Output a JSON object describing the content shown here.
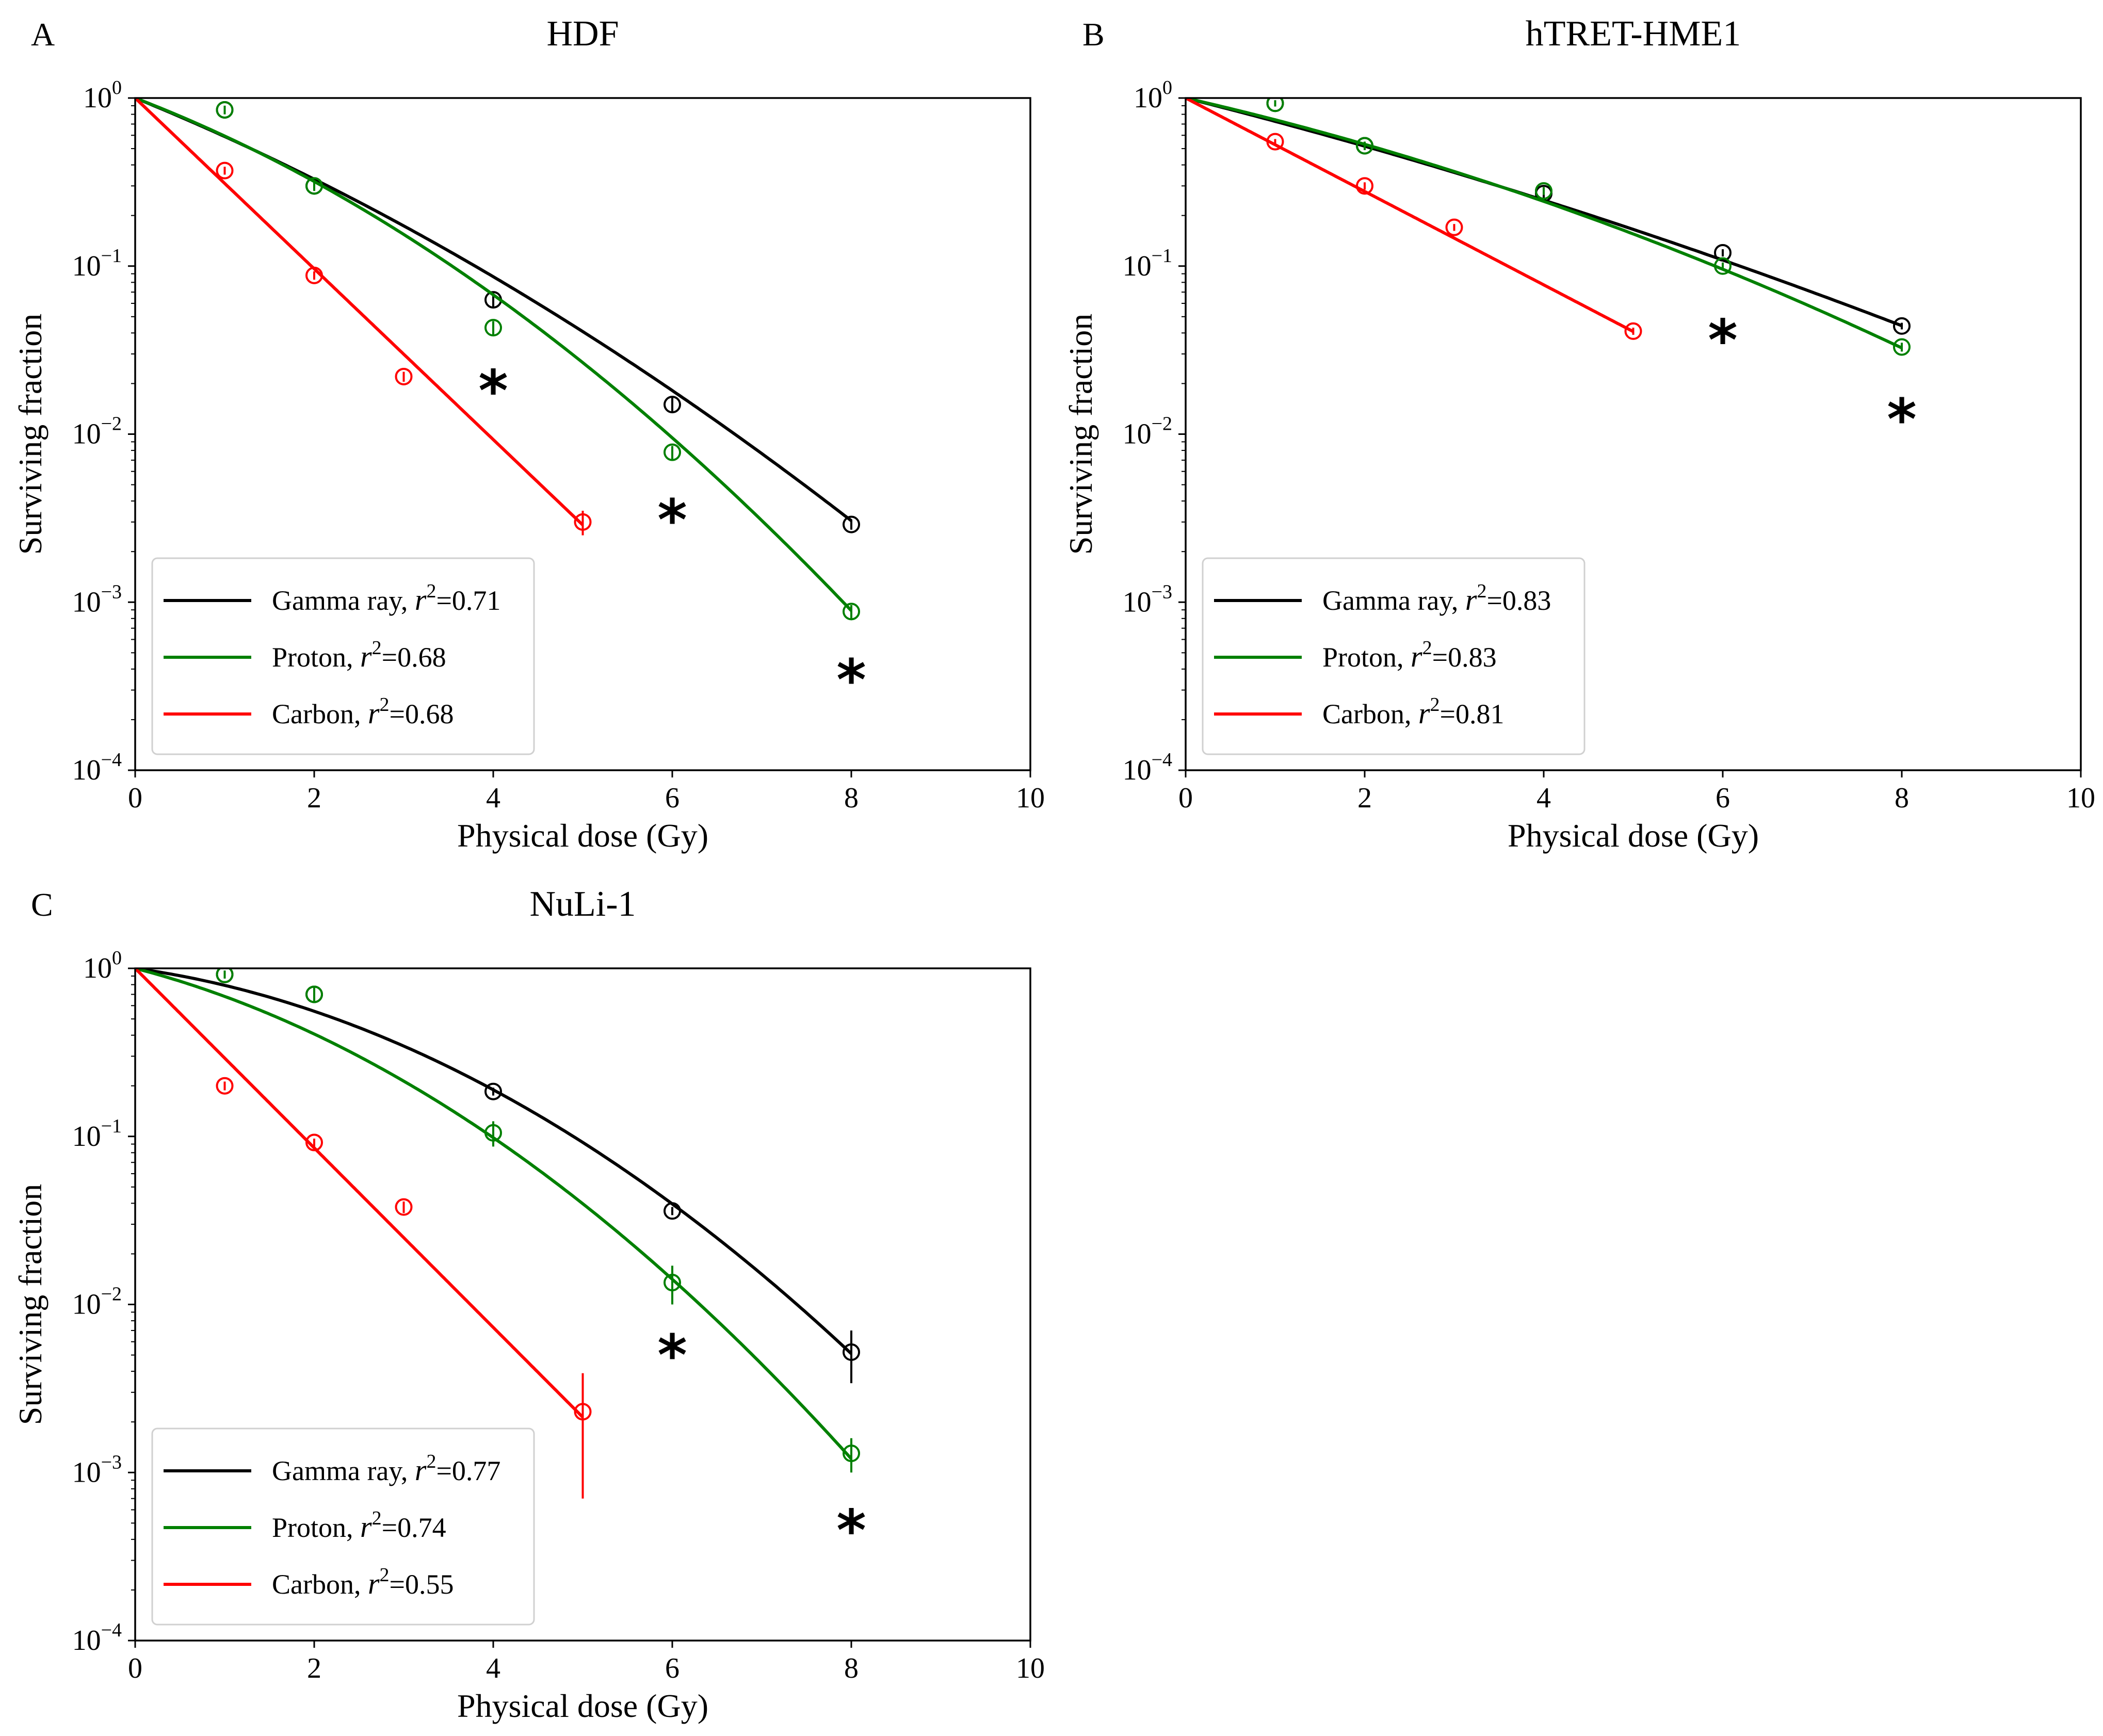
{
  "chart_data": [
    {
      "type": "line",
      "panel": "A",
      "title": "HDF",
      "xlabel": "Physical dose (Gy)",
      "ylabel": "Surviving fraction",
      "yscale": "log",
      "xlim": [
        0,
        10
      ],
      "ylim": [
        0.0001,
        1
      ],
      "xticks": [
        "0",
        "2",
        "4",
        "6",
        "8",
        "10"
      ],
      "yticks": [
        {
          "base": "10",
          "exp": "0"
        },
        {
          "base": "10",
          "exp": "−1"
        },
        {
          "base": "10",
          "exp": "−2"
        },
        {
          "base": "10",
          "exp": "−3"
        },
        {
          "base": "10",
          "exp": "−4"
        }
      ],
      "legend_position": "lower-left",
      "series": [
        {
          "name": "Gamma ray",
          "r2_label": "r",
          "r2_exp": "2",
          "r2_value": "=0.71",
          "color": "#000000",
          "fit": {
            "alpha": 0.5,
            "beta": 0.028,
            "xmax": 8
          },
          "points": [
            {
              "x": 1,
              "y": 0.85,
              "err": 0.05
            },
            {
              "x": 2,
              "y": 0.3,
              "err": 0.02
            },
            {
              "x": 4,
              "y": 0.063,
              "err": 0.006
            },
            {
              "x": 6,
              "y": 0.015,
              "err": 0.0015
            },
            {
              "x": 8,
              "y": 0.0029,
              "err": 0.0002
            }
          ]
        },
        {
          "name": "Proton",
          "r2_label": "r",
          "r2_exp": "2",
          "r2_value": "=0.68",
          "color": "#008000",
          "fit": {
            "alpha": 0.47,
            "beta": 0.051,
            "xmax": 8
          },
          "points": [
            {
              "x": 1,
              "y": 0.85,
              "err": 0.05
            },
            {
              "x": 2,
              "y": 0.3,
              "err": 0.02
            },
            {
              "x": 4,
              "y": 0.043,
              "err": 0.004
            },
            {
              "x": 6,
              "y": 0.0078,
              "err": 0.0007
            },
            {
              "x": 8,
              "y": 0.00088,
              "err": 8e-05
            }
          ]
        },
        {
          "name": "Carbon",
          "r2_label": "r",
          "r2_exp": "2",
          "r2_value": "=0.68",
          "color": "#ff0000",
          "fit": {
            "alpha": 1.17,
            "beta": 0.0,
            "xmax": 5
          },
          "points": [
            {
              "x": 1,
              "y": 0.37,
              "err": 0.02
            },
            {
              "x": 2,
              "y": 0.088,
              "err": 0.005
            },
            {
              "x": 3,
              "y": 0.022,
              "err": 0.0015
            },
            {
              "x": 5,
              "y": 0.003,
              "err": 0.0005
            }
          ]
        }
      ],
      "annotations": [
        {
          "text": "*",
          "x": 4,
          "y": 0.02
        },
        {
          "text": "*",
          "x": 6,
          "y": 0.0034
        },
        {
          "text": "*",
          "x": 8,
          "y": 0.00038
        }
      ]
    },
    {
      "type": "line",
      "panel": "B",
      "title": "hTRET-HME1",
      "xlabel": "Physical dose (Gy)",
      "ylabel": "Surviving fraction",
      "yscale": "log",
      "xlim": [
        0,
        10
      ],
      "ylim": [
        0.0001,
        1
      ],
      "xticks": [
        "0",
        "2",
        "4",
        "6",
        "8",
        "10"
      ],
      "yticks": [
        {
          "base": "10",
          "exp": "0"
        },
        {
          "base": "10",
          "exp": "−1"
        },
        {
          "base": "10",
          "exp": "−2"
        },
        {
          "base": "10",
          "exp": "−3"
        },
        {
          "base": "10",
          "exp": "−4"
        }
      ],
      "legend_position": "lower-left",
      "series": [
        {
          "name": "Gamma ray",
          "r2_label": "r",
          "r2_exp": "2",
          "r2_value": "=0.83",
          "color": "#000000",
          "fit": {
            "alpha": 0.31,
            "beta": 0.01,
            "xmax": 8
          },
          "points": [
            {
              "x": 1,
              "y": 0.93,
              "err": 0.04
            },
            {
              "x": 2,
              "y": 0.52,
              "err": 0.03
            },
            {
              "x": 4,
              "y": 0.27,
              "err": 0.015
            },
            {
              "x": 6,
              "y": 0.12,
              "err": 0.006
            },
            {
              "x": 8,
              "y": 0.044,
              "err": 0.002
            }
          ]
        },
        {
          "name": "Proton",
          "r2_label": "r",
          "r2_exp": "2",
          "r2_value": "=0.83",
          "color": "#008000",
          "fit": {
            "alpha": 0.28,
            "beta": 0.0185,
            "xmax": 8
          },
          "points": [
            {
              "x": 1,
              "y": 0.93,
              "err": 0.04
            },
            {
              "x": 2,
              "y": 0.52,
              "err": 0.03
            },
            {
              "x": 4,
              "y": 0.28,
              "err": 0.015
            },
            {
              "x": 6,
              "y": 0.1,
              "err": 0.005
            },
            {
              "x": 8,
              "y": 0.033,
              "err": 0.002
            }
          ]
        },
        {
          "name": "Carbon",
          "r2_label": "r",
          "r2_exp": "2",
          "r2_value": "=0.81",
          "color": "#ff0000",
          "fit": {
            "alpha": 0.64,
            "beta": 0.0,
            "xmax": 5
          },
          "points": [
            {
              "x": 1,
              "y": 0.55,
              "err": 0.02
            },
            {
              "x": 2,
              "y": 0.3,
              "err": 0.015
            },
            {
              "x": 3,
              "y": 0.17,
              "err": 0.008
            },
            {
              "x": 5,
              "y": 0.041,
              "err": 0.002
            }
          ]
        }
      ],
      "annotations": [
        {
          "text": "*",
          "x": 6,
          "y": 0.04
        },
        {
          "text": "*",
          "x": 8,
          "y": 0.0135
        }
      ]
    },
    {
      "type": "line",
      "panel": "C",
      "title": "NuLi-1",
      "xlabel": "Physical dose (Gy)",
      "ylabel": "Surviving fraction",
      "yscale": "log",
      "xlim": [
        0,
        10
      ],
      "ylim": [
        0.0001,
        1
      ],
      "xticks": [
        "0",
        "2",
        "4",
        "6",
        "8",
        "10"
      ],
      "yticks": [
        {
          "base": "10",
          "exp": "0"
        },
        {
          "base": "10",
          "exp": "−1"
        },
        {
          "base": "10",
          "exp": "−2"
        },
        {
          "base": "10",
          "exp": "−3"
        },
        {
          "base": "10",
          "exp": "−4"
        }
      ],
      "legend_position": "lower-left",
      "series": [
        {
          "name": "Gamma ray",
          "r2_label": "r",
          "r2_exp": "2",
          "r2_value": "=0.77",
          "color": "#000000",
          "fit": {
            "alpha": 0.172,
            "beta": 0.061,
            "xmax": 8
          },
          "points": [
            {
              "x": 1,
              "y": 0.92,
              "err": 0.05
            },
            {
              "x": 2,
              "y": 0.7,
              "err": 0.07
            },
            {
              "x": 4,
              "y": 0.185,
              "err": 0.01
            },
            {
              "x": 6,
              "y": 0.036,
              "err": 0.002
            },
            {
              "x": 8,
              "y": 0.0052,
              "err": 0.0018
            }
          ]
        },
        {
          "name": "Proton",
          "r2_label": "r",
          "r2_exp": "2",
          "r2_value": "=0.74",
          "color": "#008000",
          "fit": {
            "alpha": 0.32,
            "beta": 0.065,
            "xmax": 8
          },
          "points": [
            {
              "x": 1,
              "y": 0.92,
              "err": 0.05
            },
            {
              "x": 2,
              "y": 0.7,
              "err": 0.07
            },
            {
              "x": 4,
              "y": 0.105,
              "err": 0.018
            },
            {
              "x": 6,
              "y": 0.0135,
              "err": 0.0035
            },
            {
              "x": 8,
              "y": 0.0013,
              "err": 0.0003
            }
          ]
        },
        {
          "name": "Carbon",
          "r2_label": "r",
          "r2_exp": "2",
          "r2_value": "=0.55",
          "color": "#ff0000",
          "fit": {
            "alpha": 1.23,
            "beta": 0.0,
            "xmax": 5
          },
          "points": [
            {
              "x": 1,
              "y": 0.2,
              "err": 0.012
            },
            {
              "x": 2,
              "y": 0.092,
              "err": 0.005
            },
            {
              "x": 3,
              "y": 0.038,
              "err": 0.003
            },
            {
              "x": 5,
              "y": 0.0023,
              "err": 0.0016
            }
          ]
        }
      ],
      "annotations": [
        {
          "text": "*",
          "x": 6,
          "y": 0.0055
        },
        {
          "text": "*",
          "x": 8,
          "y": 0.0005
        }
      ]
    }
  ]
}
